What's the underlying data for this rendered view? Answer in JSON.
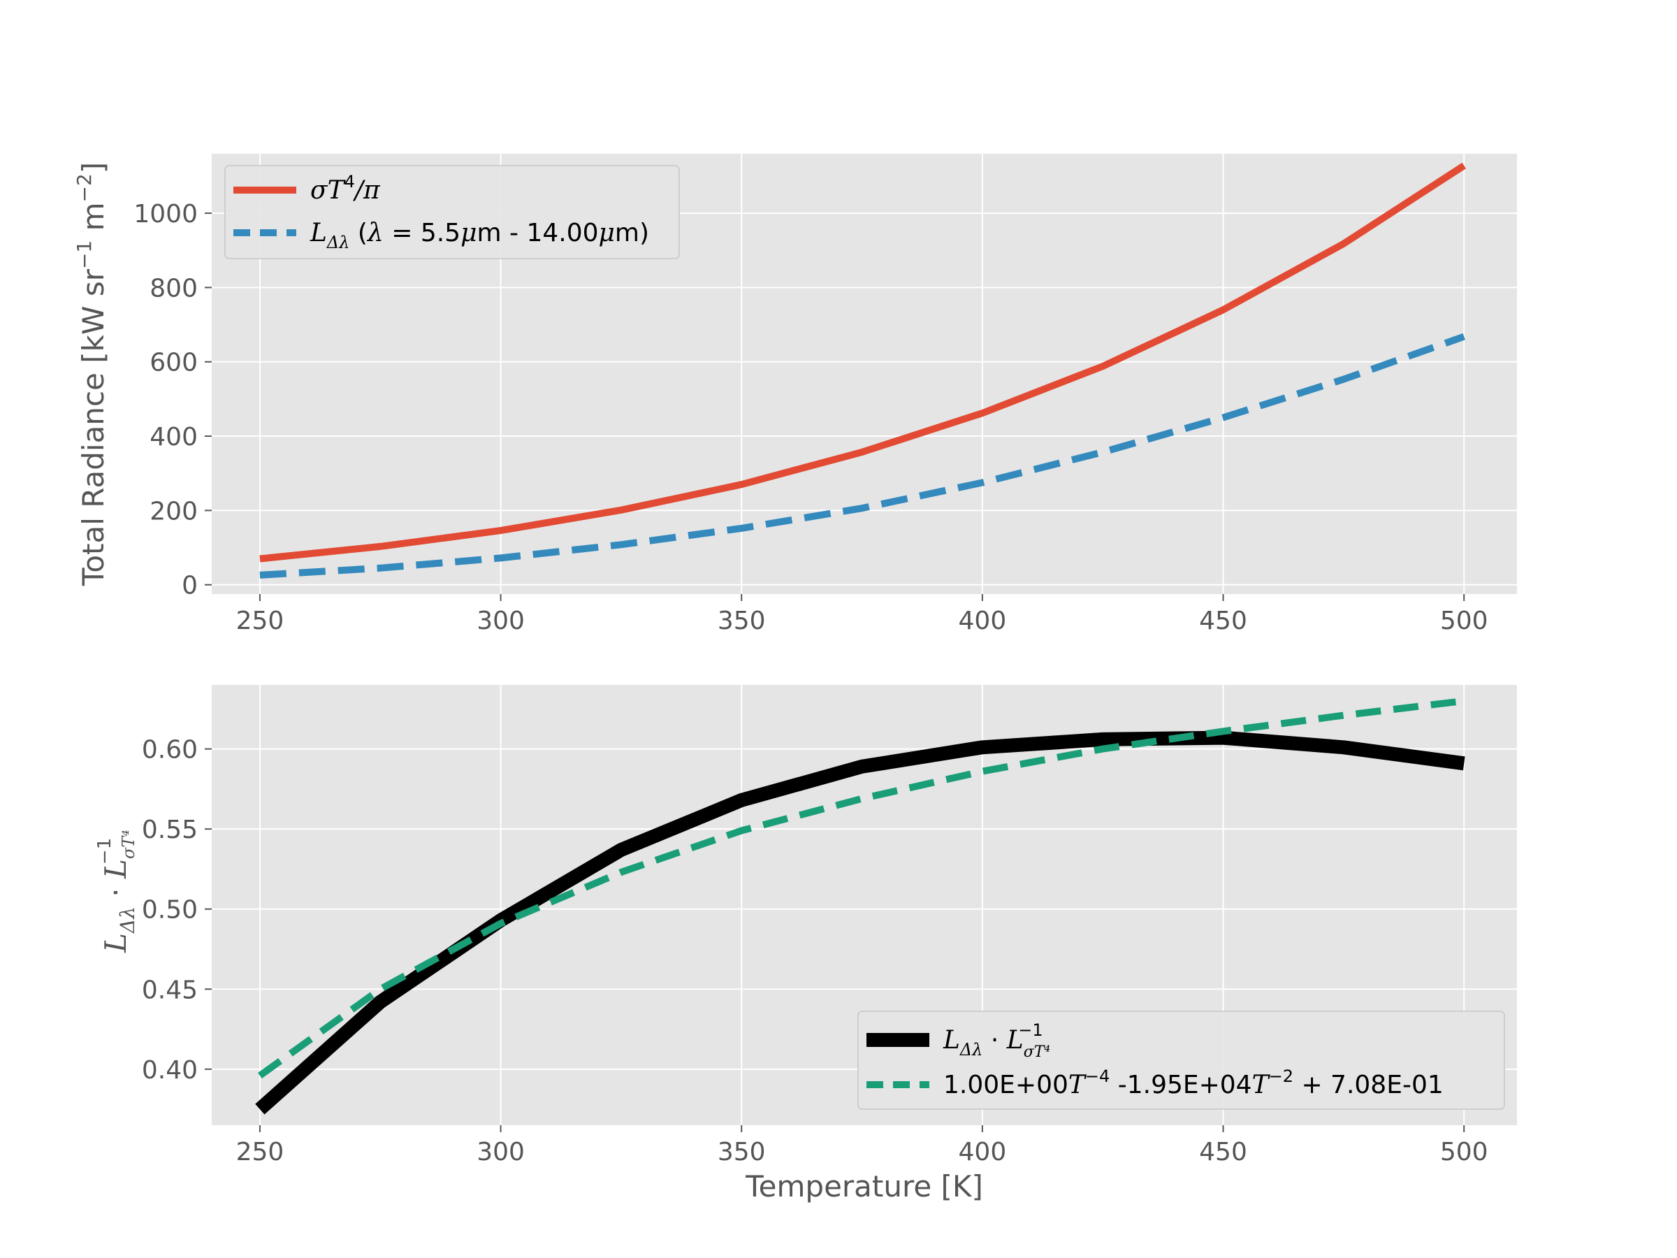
{
  "colors": {
    "red": "#e24a33",
    "blue": "#348abd",
    "black": "#000000",
    "green": "#1a9e77",
    "panel": "#e5e5e5",
    "tick": "#555555"
  },
  "chart_data": [
    {
      "type": "line",
      "xlabel": "",
      "ylabel": "Total Radiance [kW sr⁻¹ m⁻²]",
      "xlim": [
        240,
        511
      ],
      "ylim": [
        -25,
        1160
      ],
      "xticks": [
        "250",
        "300",
        "350",
        "400",
        "450",
        "500"
      ],
      "yticks": [
        "0",
        "200",
        "400",
        "600",
        "800",
        "1000"
      ],
      "grid": true,
      "legend": "top-left",
      "x": [
        250,
        275,
        300,
        325,
        350,
        375,
        400,
        425,
        450,
        475,
        500
      ],
      "series": [
        {
          "name": "σT⁴/π",
          "color": "#e24a33",
          "dash": "solid",
          "values": [
            70,
            103,
            146,
            201,
            270,
            357,
            462,
            588,
            740,
            918,
            1128
          ]
        },
        {
          "name": "L_Δλ (λ = 5.5μm - 14.00μm)",
          "color": "#348abd",
          "dash": "dashed",
          "values": [
            26,
            45,
            72,
            108,
            152,
            206,
            275,
            357,
            450,
            553,
            668
          ]
        }
      ]
    },
    {
      "type": "line",
      "xlabel": "Temperature [K]",
      "ylabel": "L_Δλ · L_σT⁴⁻¹",
      "xlim": [
        240,
        511
      ],
      "ylim": [
        0.365,
        0.64
      ],
      "xticks": [
        "250",
        "300",
        "350",
        "400",
        "450",
        "500"
      ],
      "yticks": [
        "0.40",
        "0.45",
        "0.50",
        "0.55",
        "0.60"
      ],
      "grid": true,
      "legend": "bottom-right",
      "x": [
        250,
        275,
        300,
        325,
        350,
        375,
        400,
        425,
        450,
        475,
        500
      ],
      "series": [
        {
          "name": "L_Δλ · L_σT⁴⁻¹",
          "color": "#000000",
          "dash": "solid",
          "values": [
            0.375,
            0.442,
            0.493,
            0.537,
            0.568,
            0.589,
            0.601,
            0.606,
            0.607,
            0.601,
            0.591
          ]
        },
        {
          "name": "1.00E+00T⁻⁴ -1.95E+04T⁻² + 7.08E-01",
          "color": "#1a9e77",
          "dash": "dashed",
          "values": [
            0.396,
            0.45,
            0.491,
            0.523,
            0.549,
            0.569,
            0.586,
            0.6,
            0.611,
            0.621,
            0.63
          ]
        }
      ]
    }
  ]
}
